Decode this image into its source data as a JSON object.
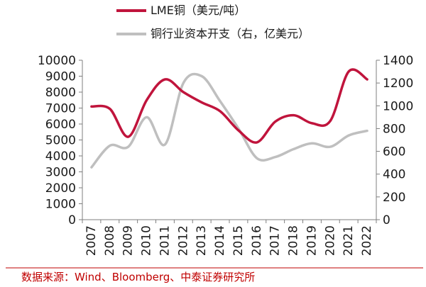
{
  "chart_data": {
    "type": "line",
    "title": "",
    "categories": [
      "2007",
      "2008",
      "2009",
      "2010",
      "2011",
      "2012",
      "2013",
      "2014",
      "2015",
      "2016",
      "2017",
      "2018",
      "2019",
      "2020",
      "2021",
      "2022"
    ],
    "series": [
      {
        "name": "LME铜（美元/吨）",
        "axis": "left",
        "color": "#c0143c",
        "values": [
          7100,
          6950,
          5200,
          7500,
          8800,
          8000,
          7350,
          6800,
          5600,
          4850,
          6150,
          6550,
          6050,
          6200,
          9300,
          8800
        ]
      },
      {
        "name": "铜行业资本开支（右，亿美元）",
        "axis": "right",
        "color": "#bfbfbf",
        "values": [
          460,
          650,
          640,
          900,
          660,
          1200,
          1260,
          1040,
          800,
          540,
          550,
          620,
          670,
          640,
          740,
          780
        ]
      }
    ],
    "yleft": {
      "lim": [
        0,
        10000
      ],
      "ticks": [
        "0",
        "1000",
        "2000",
        "3000",
        "4000",
        "5000",
        "6000",
        "7000",
        "8000",
        "9000",
        "10000"
      ]
    },
    "yright": {
      "lim": [
        0,
        1400
      ],
      "ticks": [
        "0",
        "200",
        "400",
        "600",
        "800",
        "1000",
        "1200",
        "1400"
      ]
    },
    "xlabel": "",
    "grid": false,
    "legend_position": "top-center"
  },
  "source": "数据来源：Wind、Bloomberg、中泰证券研究所",
  "colors": {
    "source_text": "#c00000",
    "axis": "#7f7f7f",
    "divider": "#c00000"
  }
}
